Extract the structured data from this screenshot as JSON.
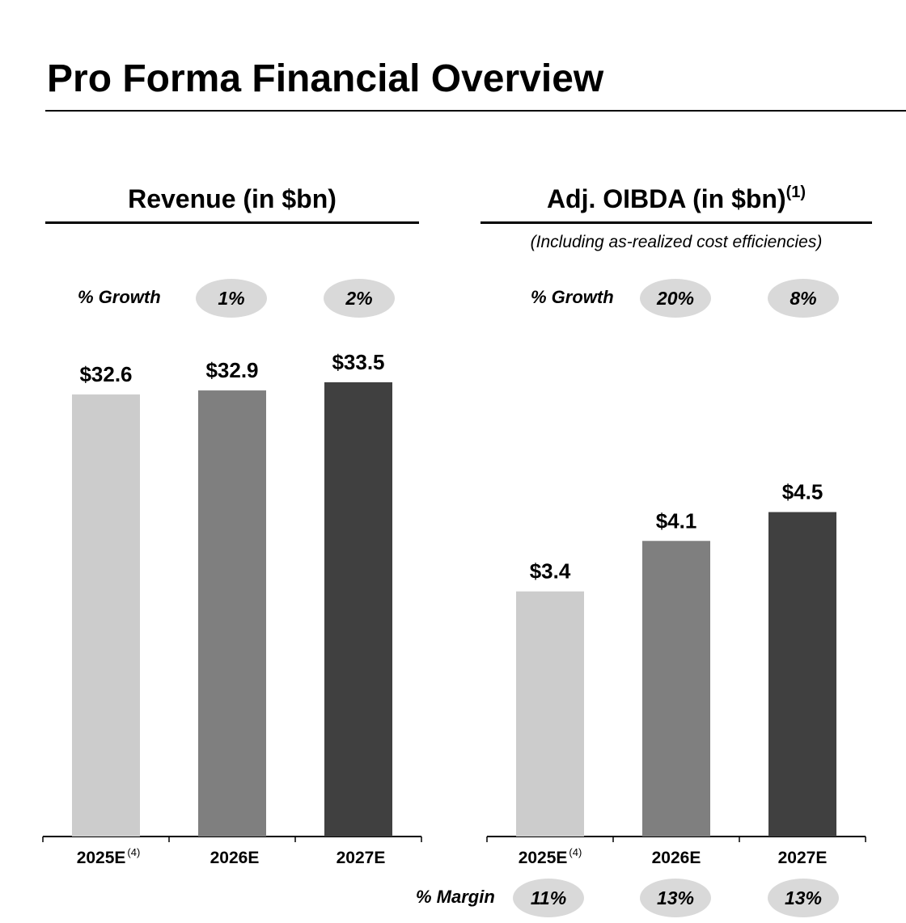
{
  "page": {
    "title": "Pro Forma Financial Overview"
  },
  "colors": {
    "bar_2025": "#cccccc",
    "bar_2026": "#7f7f7f",
    "bar_2027": "#404040",
    "pill": "#d9d9d9"
  },
  "chart_data": [
    {
      "type": "bar",
      "title": "Revenue (in $bn)",
      "categories": [
        "2025E",
        "2026E",
        "2027E"
      ],
      "category_notes": [
        "(4)",
        "",
        ""
      ],
      "values": [
        32.6,
        32.9,
        33.5
      ],
      "value_labels": [
        "$32.6",
        "$32.9",
        "$33.5"
      ],
      "ylim": [
        0,
        33.5
      ],
      "growth_label": "% Growth",
      "growth": [
        "1%",
        "2%"
      ],
      "grid": false
    },
    {
      "type": "bar",
      "title": "Adj. OIBDA (in $bn)",
      "title_note": "(1)",
      "subtitle": "(Including as-realized cost efficiencies)",
      "categories": [
        "2025E",
        "2026E",
        "2027E"
      ],
      "category_notes": [
        "(4)",
        "",
        ""
      ],
      "values": [
        3.4,
        4.1,
        4.5
      ],
      "value_labels": [
        "$3.4",
        "$4.1",
        "$4.5"
      ],
      "ylim": [
        0,
        6.3
      ],
      "growth_label": "% Growth",
      "growth": [
        "20%",
        "8%"
      ],
      "margin_label": "% Margin",
      "margin": [
        "11%",
        "13%",
        "13%"
      ],
      "grid": false
    }
  ]
}
